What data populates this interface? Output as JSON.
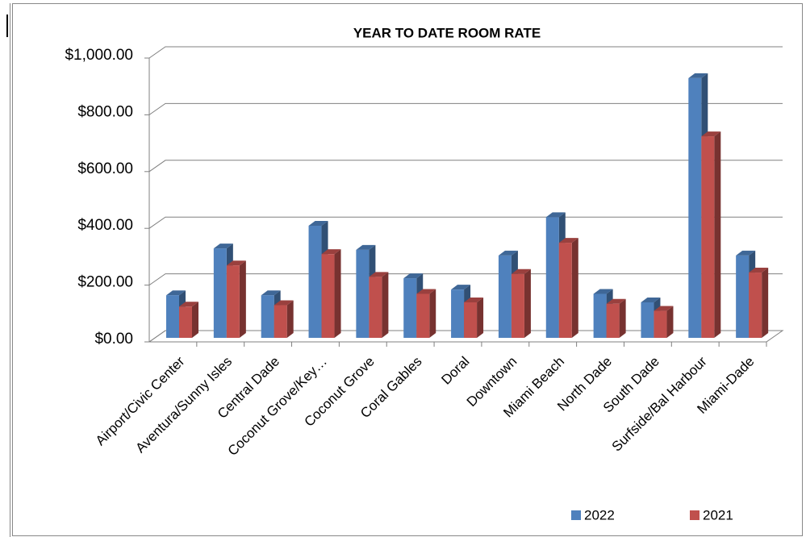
{
  "chart_data": {
    "type": "bar3d",
    "title": "YEAR TO DATE ROOM RATE",
    "categories": [
      "Airport/Civic Center",
      "Aventura/Sunny Isles",
      "Central Dade",
      "Coconut Grove/Key…",
      "Coconut Grove",
      "Coral Gables",
      "Doral",
      "Downtown",
      "Miami Beach",
      "North Dade",
      "South Dade",
      "Surfside/Bal Harbour",
      "Miami-Dade"
    ],
    "series": [
      {
        "name": "2022",
        "color": "#4f81bd",
        "values": [
          150,
          315,
          150,
          395,
          310,
          210,
          170,
          290,
          425,
          155,
          125,
          915,
          290
        ]
      },
      {
        "name": "2021",
        "color": "#c0504d",
        "values": [
          110,
          255,
          115,
          295,
          215,
          155,
          125,
          225,
          335,
          120,
          95,
          710,
          230
        ]
      }
    ],
    "ylim": [
      0,
      1000
    ],
    "yticks": [
      {
        "value": 0,
        "label": "$0.00"
      },
      {
        "value": 200,
        "label": "$200.00"
      },
      {
        "value": 400,
        "label": "$400.00"
      },
      {
        "value": 600,
        "label": "$600.00"
      },
      {
        "value": 800,
        "label": "$800.00"
      },
      {
        "value": 1000,
        "label": "$1,000.00"
      }
    ],
    "grid": true,
    "legend": "bottom"
  }
}
